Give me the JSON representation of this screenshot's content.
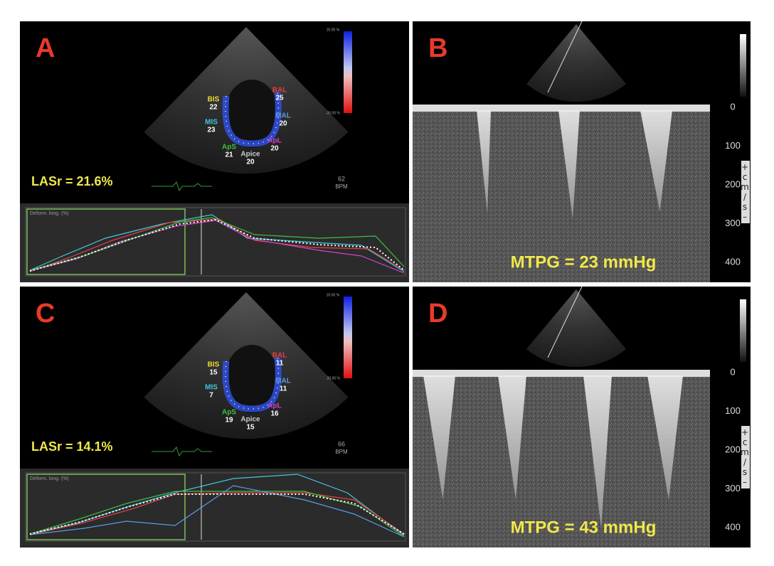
{
  "panels": [
    {
      "letter": "A",
      "type": "strain",
      "scale_max": "20.00 %",
      "scale_min": "-20.00 %",
      "segments": [
        {
          "name": "BIS",
          "value": 22
        },
        {
          "name": "BAL",
          "value": 25
        },
        {
          "name": "MIS",
          "value": 23
        },
        {
          "name": "MAL",
          "value": 20
        },
        {
          "name": "ApS",
          "value": 21
        },
        {
          "name": "ApL",
          "value": 20
        },
        {
          "name": "Apice",
          "value": 20
        }
      ],
      "lasr": "LASr = 21.6%",
      "heart_rate": 62,
      "heart_rate_unit": "BPM",
      "plot_label": "Deform. long. (%)"
    },
    {
      "letter": "B",
      "type": "doppler",
      "measurement": "MTPG = 23 mmHg",
      "axis_ticks": [
        0,
        100,
        200,
        300,
        400
      ],
      "axis_unit": "+cm/s–"
    },
    {
      "letter": "C",
      "type": "strain",
      "scale_max": "20.00 %",
      "scale_min": "-20.00 %",
      "segments": [
        {
          "name": "BIS",
          "value": 15
        },
        {
          "name": "BAL",
          "value": 11
        },
        {
          "name": "MIS",
          "value": 7
        },
        {
          "name": "MAL",
          "value": 11
        },
        {
          "name": "ApS",
          "value": 19
        },
        {
          "name": "ApL",
          "value": 16
        },
        {
          "name": "Apice",
          "value": 15
        }
      ],
      "lasr": "LASr = 14.1%",
      "heart_rate": 66,
      "heart_rate_unit": "BPM",
      "plot_label": "Deform. long. (%)"
    },
    {
      "letter": "D",
      "type": "doppler",
      "measurement": "MTPG = 43 mmHg",
      "axis_ticks": [
        0,
        100,
        200,
        300,
        400
      ],
      "axis_unit": "+cm/s–"
    }
  ]
}
